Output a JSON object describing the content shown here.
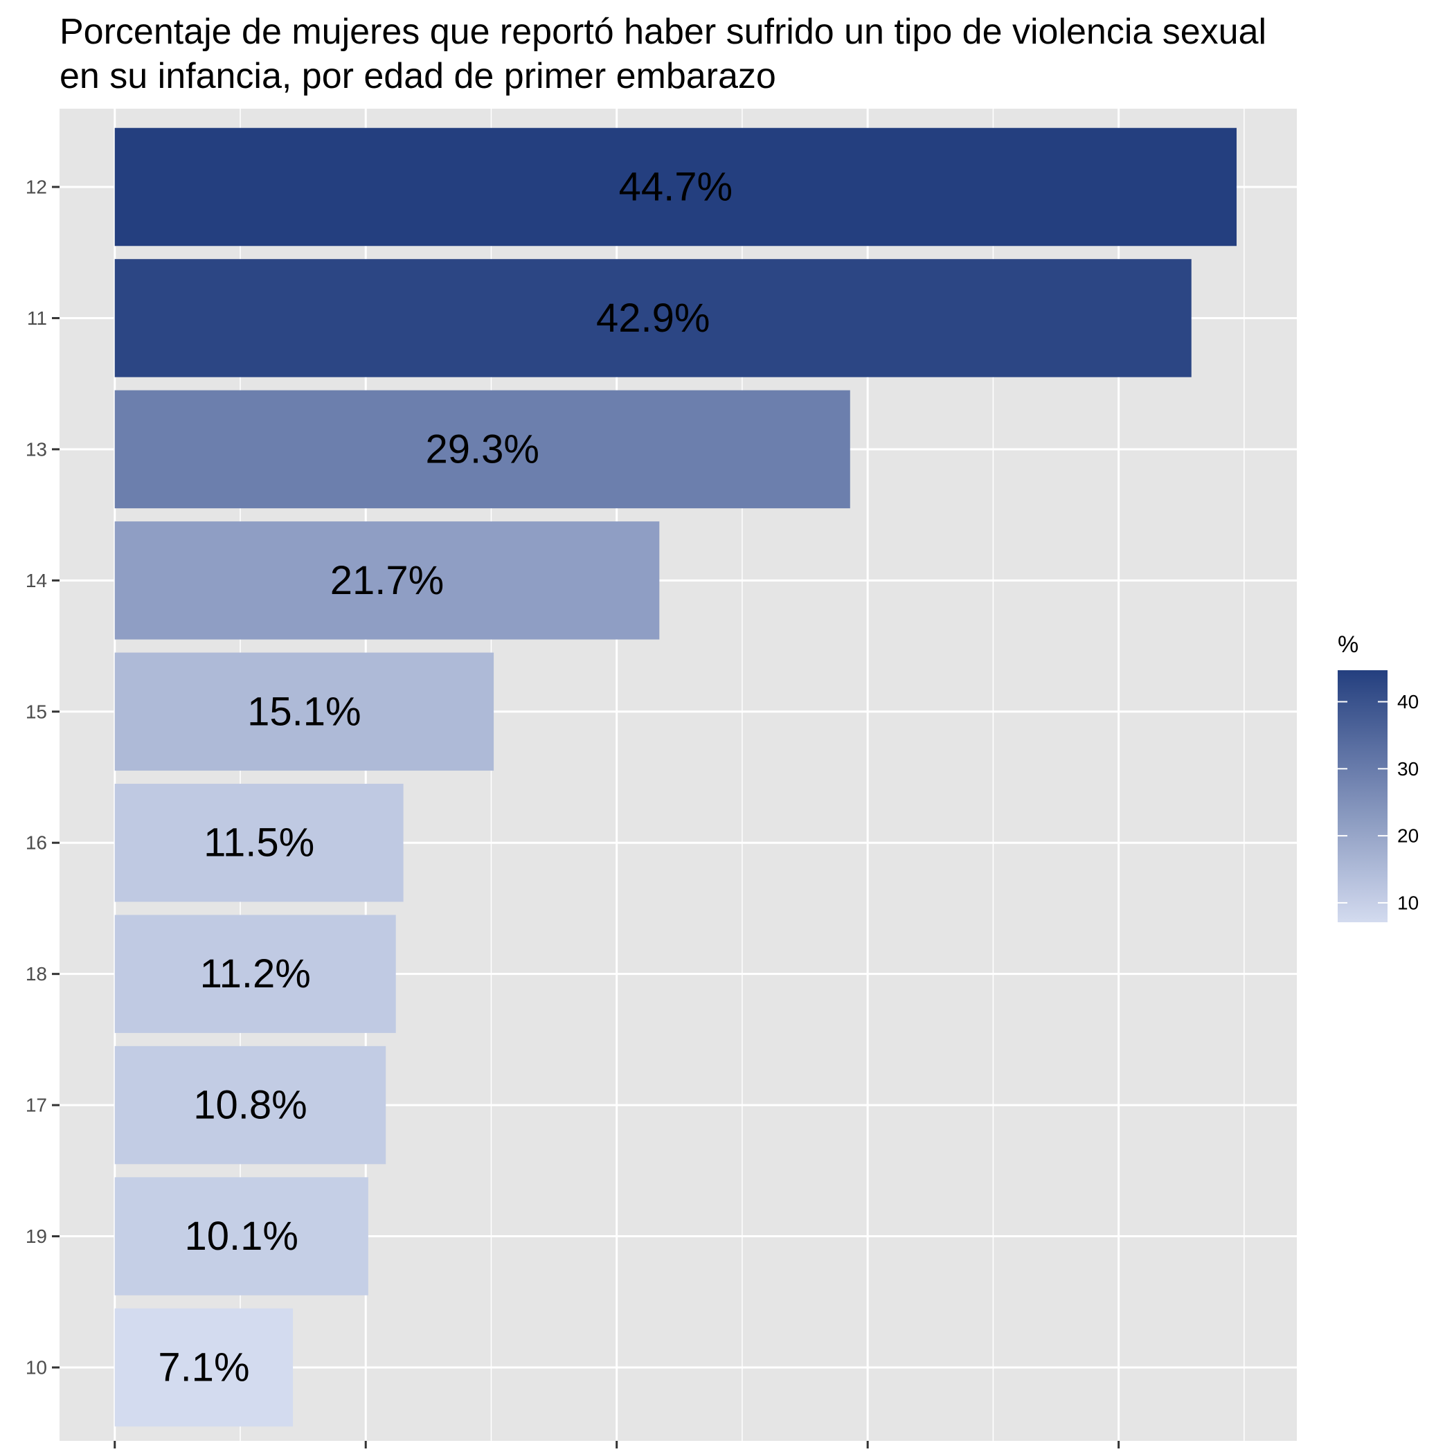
{
  "chart_data": {
    "type": "bar",
    "orientation": "horizontal",
    "title_lines": [
      "Porcentaje de mujeres que reportó haber sufrido un tipo de violencia sexual",
      "en su infancia, por edad de primer embarazo"
    ],
    "xlabel": "",
    "ylabel": "",
    "categories": [
      "12",
      "11",
      "13",
      "14",
      "15",
      "16",
      "18",
      "17",
      "19",
      "10"
    ],
    "values": [
      44.7,
      42.9,
      29.3,
      21.7,
      15.1,
      11.5,
      11.2,
      10.8,
      10.1,
      7.1
    ],
    "data_labels": [
      "44.7%",
      "42.9%",
      "29.3%",
      "21.7%",
      "15.1%",
      "11.5%",
      "11.2%",
      "10.8%",
      "10.1%",
      "7.1%"
    ],
    "xlim": [
      -2.2,
      47.1
    ],
    "x_major_ticks": [
      0,
      10,
      20,
      30,
      40
    ],
    "x_minor_ticks": [
      5,
      15,
      25,
      35,
      45
    ],
    "x_tick_labels_shown": false,
    "grid": true,
    "legend": {
      "title": "%",
      "position": "right",
      "type": "colorbar",
      "range": [
        7.1,
        44.7
      ],
      "ticks": [
        10,
        20,
        30,
        40
      ],
      "tick_labels": [
        "10",
        "20",
        "30",
        "40"
      ],
      "color_low": "#d3dbef",
      "color_high": "#243f7f"
    },
    "colors": {
      "panel_background": "#e5e5e5",
      "grid": "#ffffff",
      "axis_text": "#4d4d4d"
    }
  }
}
